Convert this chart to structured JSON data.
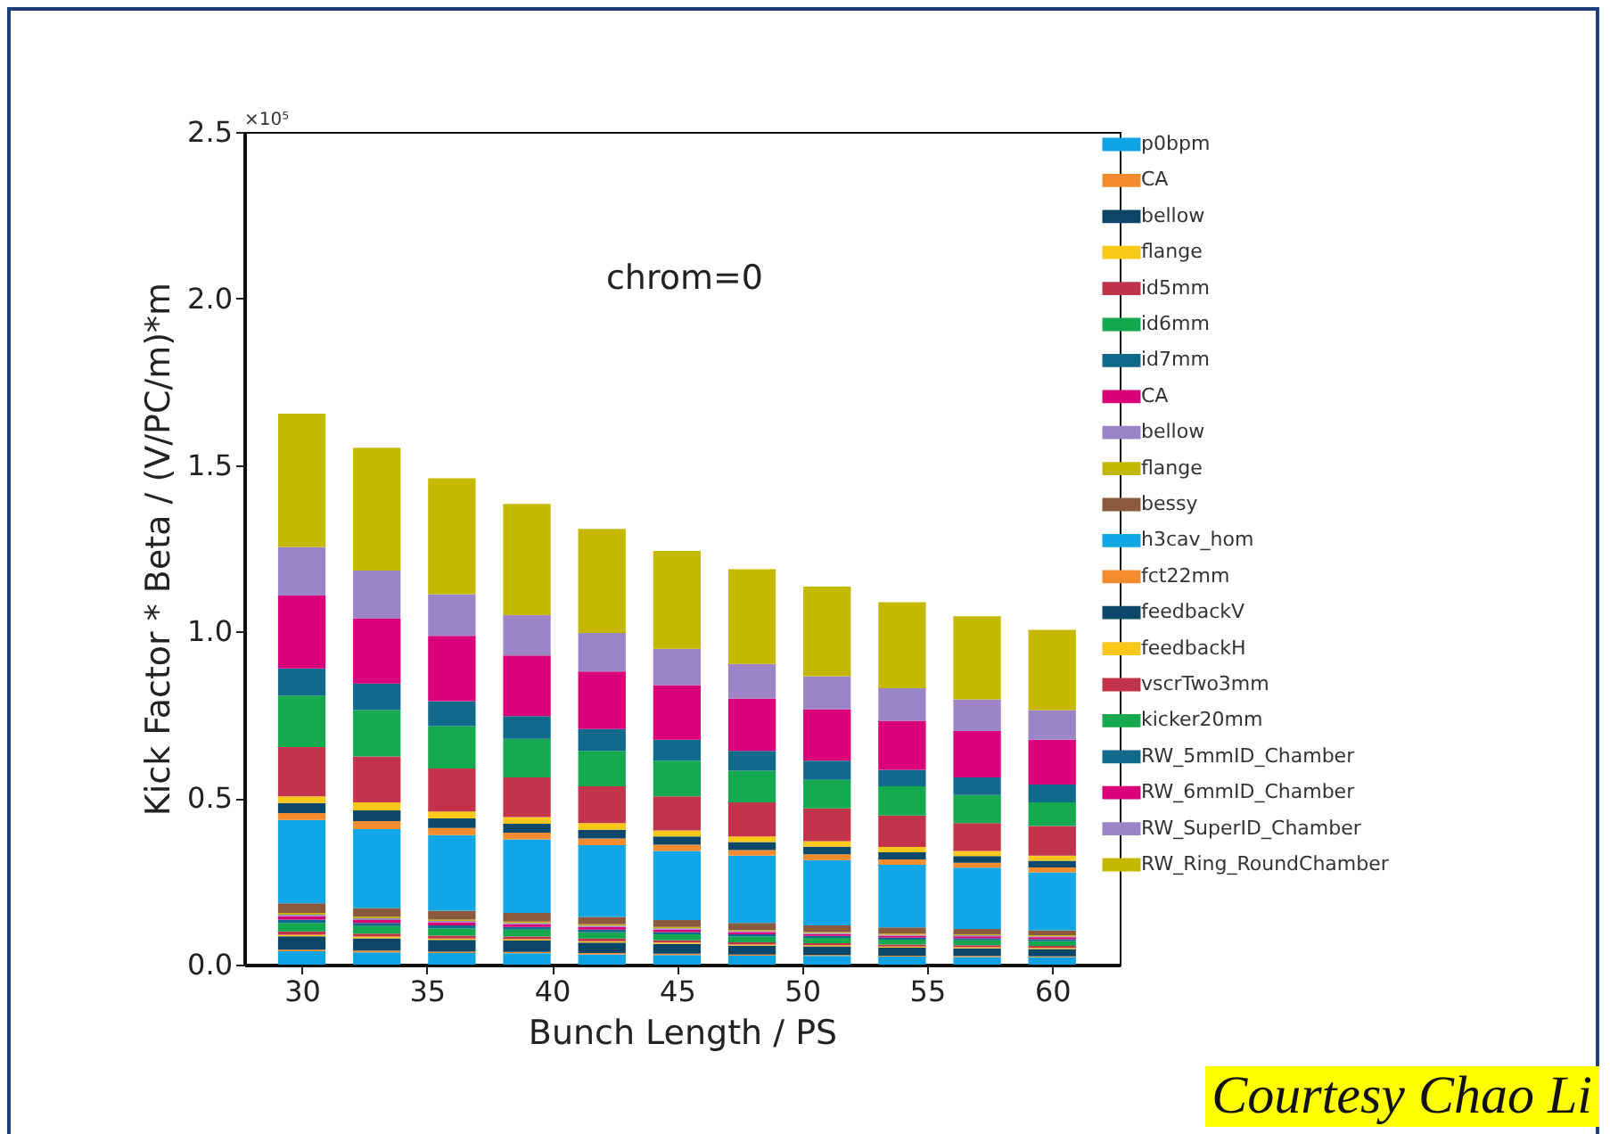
{
  "chart_data": {
    "type": "bar",
    "stacked": true,
    "xlabel": "Bunch Length / PS",
    "ylabel": "Kick Factor * Beta / (V/PC/m)*m",
    "annotations": [
      "chrom=0",
      "×10⁵",
      "Courtesy Chao Li"
    ],
    "x": [
      30,
      33,
      36,
      39,
      42,
      45,
      48,
      51,
      54,
      57,
      60
    ],
    "xlim": [
      27.7,
      62.7
    ],
    "xticks": [
      30,
      35,
      40,
      45,
      50,
      55,
      60
    ],
    "ylim": [
      0,
      2.5
    ],
    "yticks": [
      {
        "value": 0,
        "label": "0.0"
      },
      {
        "value": 0.5,
        "label": "0.5"
      },
      {
        "value": 1,
        "label": "1.0"
      },
      {
        "value": 1.5,
        "label": "1.5"
      },
      {
        "value": 2,
        "label": "2.0"
      },
      {
        "value": 2.5,
        "label": "2.5"
      }
    ],
    "legend": "right",
    "series": [
      {
        "name": "p0bpm",
        "color": "#10a3e3",
        "values": [
          0.04,
          0.037,
          0.035,
          0.034,
          0.031,
          0.029,
          0.027,
          0.026,
          0.024,
          0.023,
          0.022
        ]
      },
      {
        "name": "CA",
        "color": "#f38b2c",
        "values": [
          0.005,
          0.005,
          0.004,
          0.004,
          0.004,
          0.004,
          0.003,
          0.003,
          0.003,
          0.003,
          0.003
        ]
      },
      {
        "name": "bellow",
        "color": "#0b4668",
        "values": [
          0.04,
          0.037,
          0.035,
          0.034,
          0.031,
          0.029,
          0.027,
          0.026,
          0.024,
          0.023,
          0.022
        ]
      },
      {
        "name": "flange",
        "color": "#f7c816",
        "values": [
          0.005,
          0.005,
          0.004,
          0.004,
          0.004,
          0.004,
          0.003,
          0.003,
          0.003,
          0.003,
          0.003
        ]
      },
      {
        "name": "id5mm",
        "color": "#c0344a",
        "values": [
          0.01,
          0.009,
          0.009,
          0.008,
          0.008,
          0.007,
          0.007,
          0.006,
          0.006,
          0.006,
          0.006
        ]
      },
      {
        "name": "id6mm",
        "color": "#14a84e",
        "values": [
          0.025,
          0.023,
          0.022,
          0.021,
          0.019,
          0.018,
          0.017,
          0.016,
          0.015,
          0.015,
          0.014
        ]
      },
      {
        "name": "id7mm",
        "color": "#10698a",
        "values": [
          0.01,
          0.009,
          0.009,
          0.008,
          0.008,
          0.007,
          0.007,
          0.006,
          0.006,
          0.006,
          0.006
        ]
      },
      {
        "name": "CA",
        "color": "#d80077",
        "values": [
          0.01,
          0.009,
          0.009,
          0.008,
          0.008,
          0.007,
          0.007,
          0.006,
          0.006,
          0.006,
          0.006
        ]
      },
      {
        "name": "bellow",
        "color": "#9b84c6",
        "values": [
          0.005,
          0.005,
          0.004,
          0.004,
          0.004,
          0.004,
          0.003,
          0.003,
          0.003,
          0.003,
          0.003
        ]
      },
      {
        "name": "flange",
        "color": "#c4b800",
        "values": [
          0.005,
          0.005,
          0.004,
          0.004,
          0.004,
          0.004,
          0.003,
          0.003,
          0.003,
          0.003,
          0.003
        ]
      },
      {
        "name": "bessy",
        "color": "#8b5a3c",
        "values": [
          0.029,
          0.026,
          0.027,
          0.026,
          0.022,
          0.021,
          0.021,
          0.02,
          0.019,
          0.016,
          0.015
        ]
      },
      {
        "name": "h3cav_hom",
        "color": "#12a6e6",
        "values": [
          0.25,
          0.237,
          0.227,
          0.221,
          0.216,
          0.207,
          0.202,
          0.196,
          0.188,
          0.184,
          0.174
        ]
      },
      {
        "name": "fct22mm",
        "color": "#f28c2e",
        "values": [
          0.021,
          0.024,
          0.021,
          0.02,
          0.02,
          0.019,
          0.017,
          0.017,
          0.016,
          0.015,
          0.015
        ]
      },
      {
        "name": "feedbackV",
        "color": "#0c4869",
        "values": [
          0.03,
          0.032,
          0.029,
          0.027,
          0.026,
          0.025,
          0.024,
          0.023,
          0.021,
          0.02,
          0.02
        ]
      },
      {
        "name": "feedbackH",
        "color": "#f8c719",
        "values": [
          0.02,
          0.024,
          0.021,
          0.02,
          0.02,
          0.018,
          0.017,
          0.017,
          0.016,
          0.015,
          0.015
        ]
      },
      {
        "name": "vscrTwo3mm",
        "color": "#c2344b",
        "values": [
          0.148,
          0.138,
          0.129,
          0.119,
          0.11,
          0.102,
          0.102,
          0.098,
          0.095,
          0.084,
          0.089
        ]
      },
      {
        "name": "kicker20mm",
        "color": "#15a950",
        "values": [
          0.155,
          0.139,
          0.127,
          0.116,
          0.107,
          0.107,
          0.095,
          0.086,
          0.087,
          0.084,
          0.071
        ]
      },
      {
        "name": "RW_5mmID_Chamber",
        "color": "#116a8b",
        "values": [
          0.081,
          0.08,
          0.075,
          0.068,
          0.065,
          0.063,
          0.06,
          0.057,
          0.05,
          0.053,
          0.054
        ]
      },
      {
        "name": "RW_6mmID_Chamber",
        "color": "#d9007a",
        "values": [
          0.219,
          0.196,
          0.196,
          0.182,
          0.173,
          0.164,
          0.157,
          0.155,
          0.147,
          0.139,
          0.134
        ]
      },
      {
        "name": "RW_SuperID_Chamber",
        "color": "#9c85c7",
        "values": [
          0.146,
          0.143,
          0.125,
          0.121,
          0.116,
          0.109,
          0.104,
          0.099,
          0.098,
          0.095,
          0.089
        ]
      },
      {
        "name": "RW_Ring_RoundChamber",
        "color": "#c5b900",
        "values": [
          0.4,
          0.369,
          0.348,
          0.334,
          0.312,
          0.294,
          0.284,
          0.269,
          0.258,
          0.25,
          0.241
        ]
      }
    ]
  }
}
